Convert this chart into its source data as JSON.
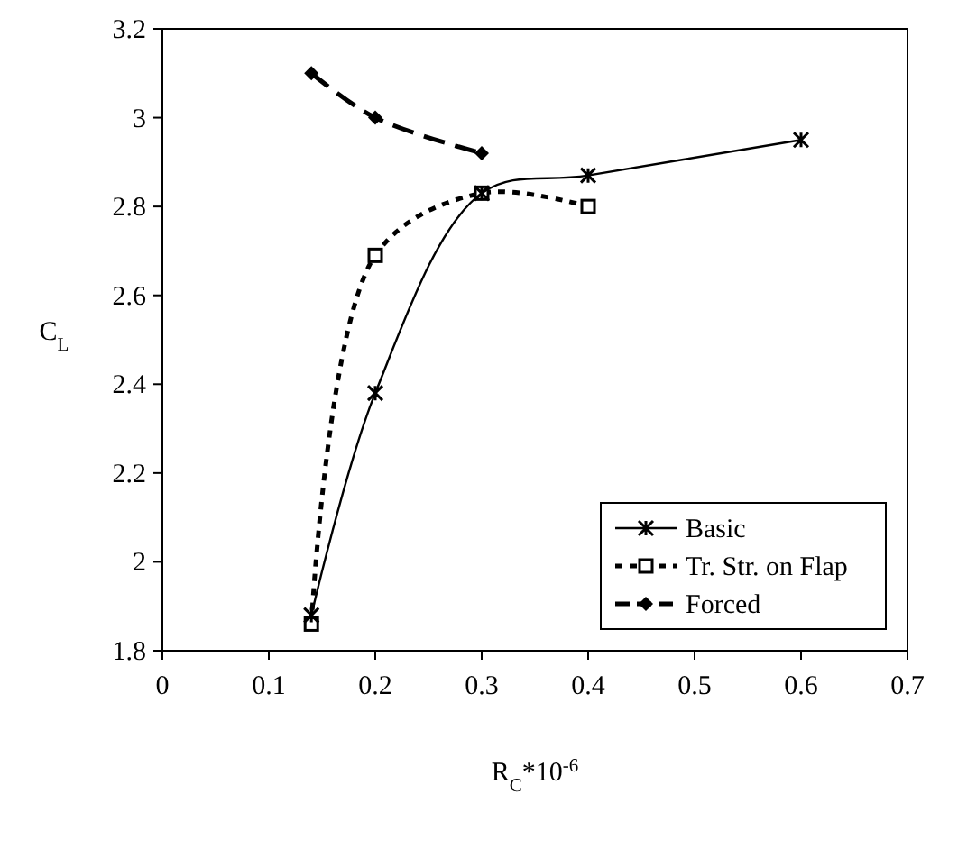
{
  "chart_data": {
    "type": "line",
    "xlabel": "R$_{C}$*10$^{-6}$",
    "ylabel": "C$_{L}$",
    "xlim": [
      0,
      0.7
    ],
    "xticks": [
      0,
      0.1,
      0.2,
      0.3,
      0.4,
      0.5,
      0.6,
      0.7
    ],
    "ylim": [
      1.8,
      3.2
    ],
    "yticks": [
      1.8,
      2,
      2.2,
      2.4,
      2.6,
      2.8,
      3,
      3.2
    ],
    "grid": false,
    "legend": "bottom right",
    "series": [
      {
        "name": "Basic",
        "color": "#000000",
        "marker": "cross",
        "line_style": "solid",
        "x": [
          0.14,
          0.2,
          0.3,
          0.4,
          0.6
        ],
        "values": [
          1.88,
          2.38,
          2.83,
          2.87,
          2.95
        ]
      },
      {
        "name": "Tr. Str. on Flap",
        "color": "#000000",
        "marker": "square",
        "line_style": "dotted",
        "x": [
          0.14,
          0.2,
          0.3,
          0.4
        ],
        "values": [
          1.86,
          2.69,
          2.83,
          2.8
        ]
      },
      {
        "name": "Forced",
        "color": "#000000",
        "marker": "diamond",
        "line_style": "dashed",
        "x": [
          0.14,
          0.2,
          0.3
        ],
        "values": [
          3.1,
          3.0,
          2.92
        ]
      }
    ]
  }
}
